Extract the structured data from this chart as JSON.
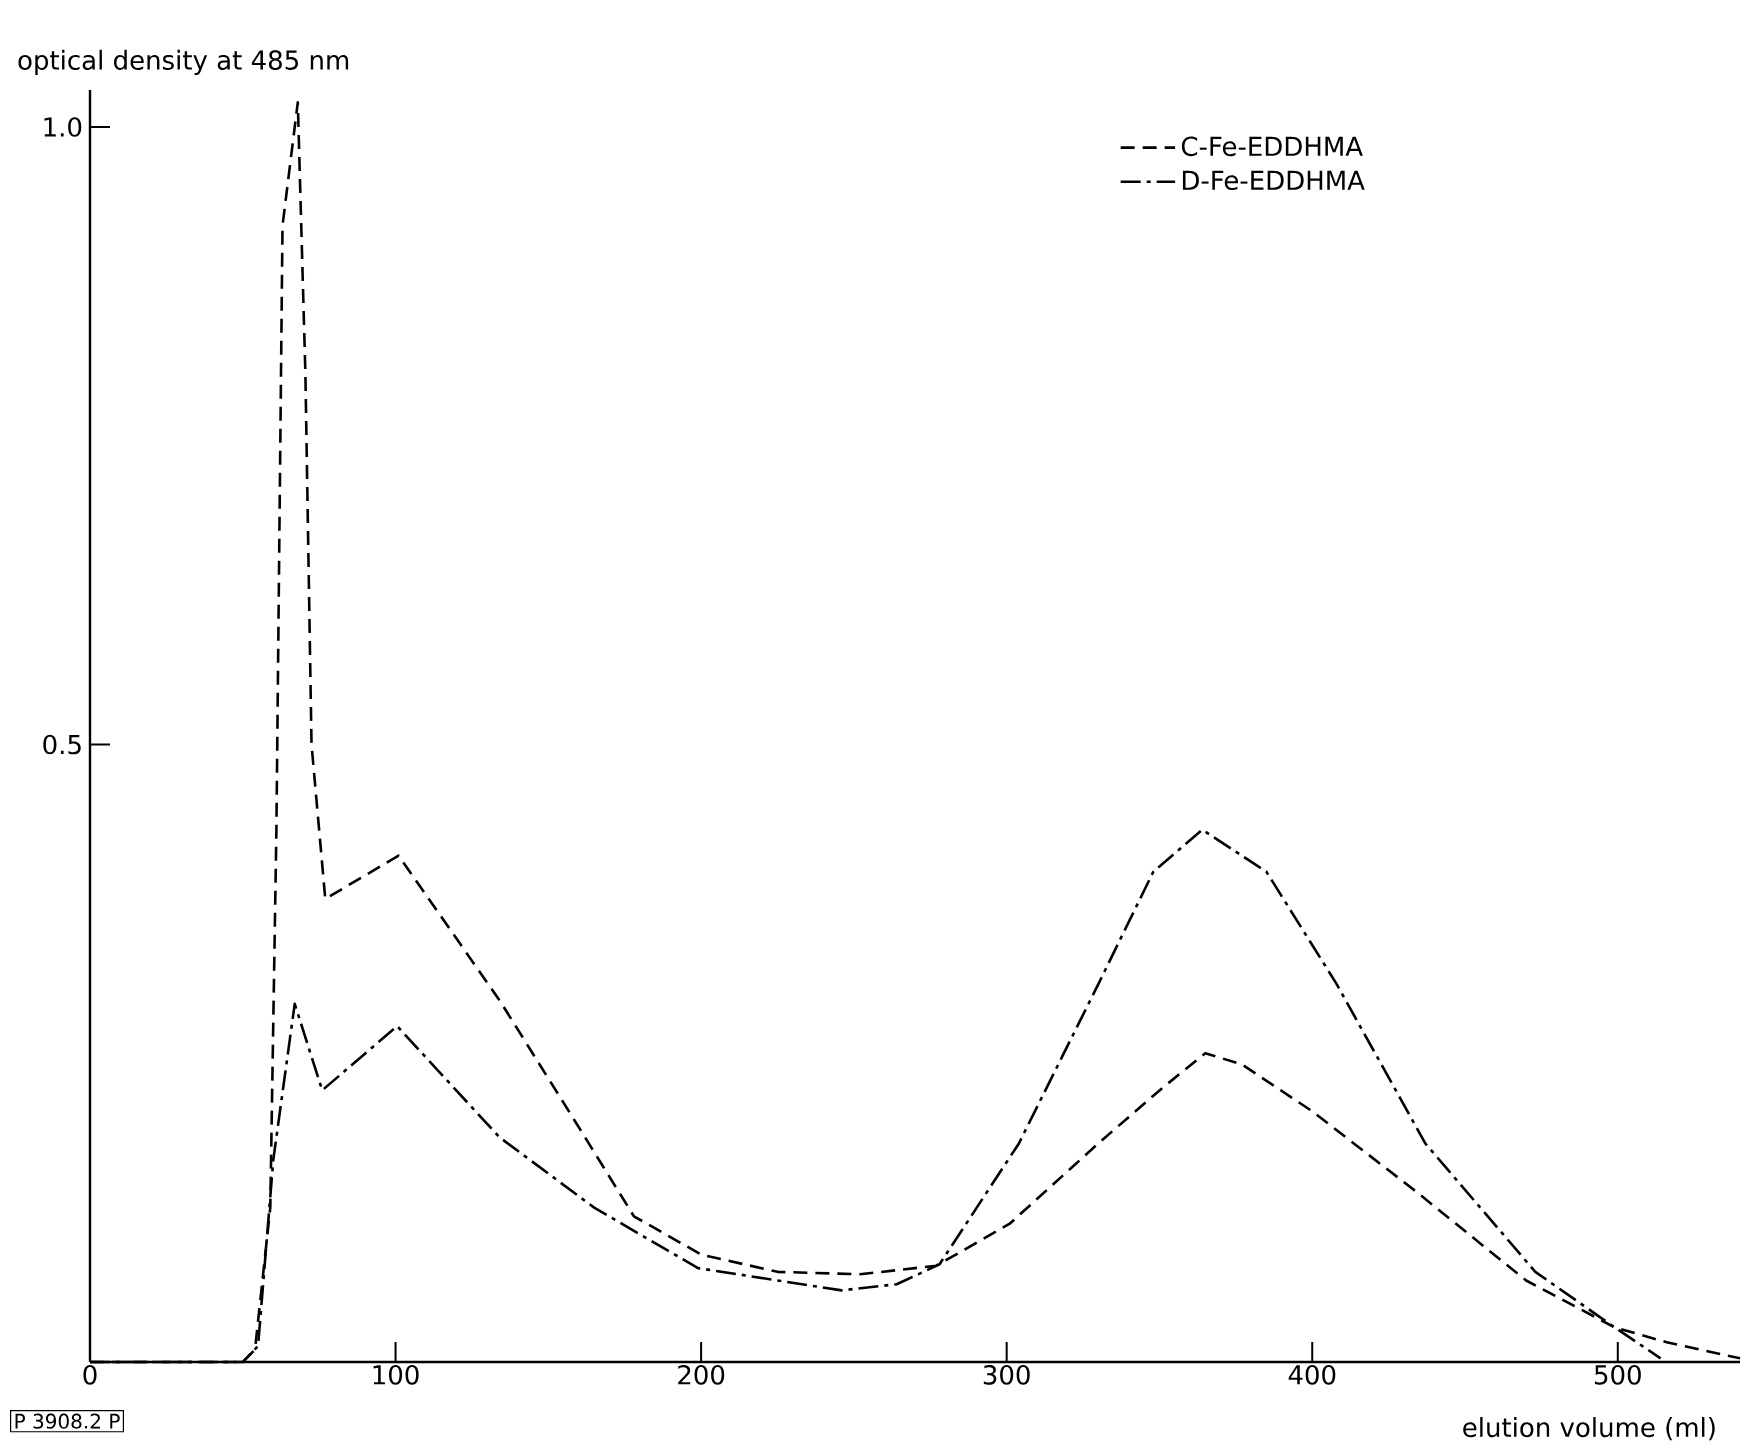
{
  "chart_data": {
    "type": "line",
    "ylabel": "optical density at 485 nm",
    "xlabel": "elution volume (ml)",
    "xlim": [
      0,
      540
    ],
    "ylim": [
      0,
      1.03
    ],
    "xticks": [
      0,
      100,
      200,
      300,
      400,
      500
    ],
    "yticks": [
      0.5,
      {
        "value": 1.0,
        "label": "1.0"
      }
    ],
    "grid": false,
    "legend": "top right",
    "marker": "none",
    "annotations": [
      "P 3908.2 P"
    ],
    "series": [
      {
        "name": "C-Fe-EDDHMA",
        "color": "#000000",
        "line_style": "dashed",
        "x": [
          0,
          50,
          54,
          59,
          61,
          63,
          68,
          70.5,
          72.5,
          77,
          101,
          134,
          160,
          178,
          200,
          225,
          252,
          277,
          301,
          330,
          351,
          365,
          377,
          400,
          434,
          470,
          499,
          516,
          540
        ],
        "values": [
          0,
          0,
          0.01,
          0.125,
          0.43,
          0.92,
          1.02,
          0.8,
          0.5,
          0.375,
          0.41,
          0.293,
          0.19,
          0.118,
          0.087,
          0.073,
          0.071,
          0.078,
          0.112,
          0.177,
          0.222,
          0.25,
          0.241,
          0.203,
          0.138,
          0.066,
          0.028,
          0.016,
          0.003
        ]
      },
      {
        "name": "D-Fe-EDDHMA",
        "color": "#000000",
        "line_style": "dashdot",
        "x": [
          0,
          50,
          55,
          60,
          67,
          76,
          100.5,
          134,
          165,
          199,
          246,
          264,
          278,
          304,
          330,
          348,
          364,
          385,
          408,
          437,
          473,
          499,
          514
        ],
        "values": [
          0,
          0,
          0.013,
          0.164,
          0.29,
          0.22,
          0.272,
          0.182,
          0.125,
          0.076,
          0.058,
          0.063,
          0.079,
          0.177,
          0.306,
          0.397,
          0.431,
          0.397,
          0.306,
          0.177,
          0.073,
          0.028,
          0.003
        ]
      }
    ]
  }
}
